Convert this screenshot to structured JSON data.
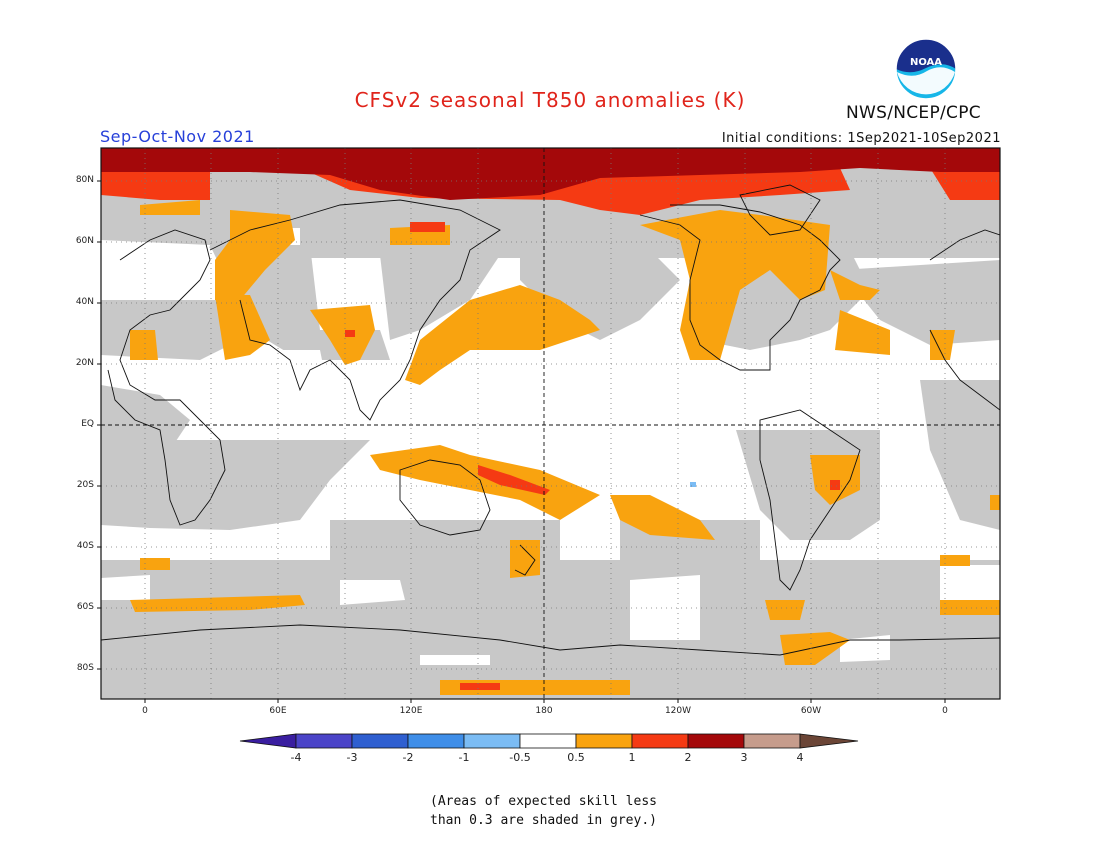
{
  "header": {
    "title": "CFSv2 seasonal T850 anomalies (K)",
    "season": "Sep-Oct-Nov 2021",
    "initial_conditions": "Initial conditions: 1Sep2021-10Sep2021",
    "agency": "NWS/NCEP/CPC",
    "logo_text": "NOAA"
  },
  "map": {
    "projection": "equirectangular",
    "lon_range": [
      -20,
      382
    ],
    "lat_range": [
      -90,
      90
    ],
    "lat_labels": [
      "80N",
      "60N",
      "40N",
      "20N",
      "EQ",
      "20S",
      "40S",
      "60S",
      "80S"
    ],
    "lon_labels": [
      "0",
      "60E",
      "120E",
      "180",
      "120W",
      "60W",
      "0"
    ],
    "reference_lines": [
      "equator dashed",
      "180 meridian dashed"
    ],
    "grid": "dotted every 30 deg lon, 20 deg lat"
  },
  "colorbar": {
    "labels": [
      "-4",
      "-3",
      "-2",
      "-1",
      "-0.5",
      "0.5",
      "1",
      "2",
      "3",
      "4"
    ],
    "colors": [
      "#3a1ea0",
      "#4b44c8",
      "#2f5fd0",
      "#3f8ee8",
      "#7bbcf4",
      "#ffffff",
      "#f9a30f",
      "#f53a13",
      "#a4080a",
      "#c69c8c",
      "#6b4536"
    ]
  },
  "note": {
    "line1": "(Areas of expected skill less",
    "line2": "than 0.3 are shaded in grey.)"
  }
}
